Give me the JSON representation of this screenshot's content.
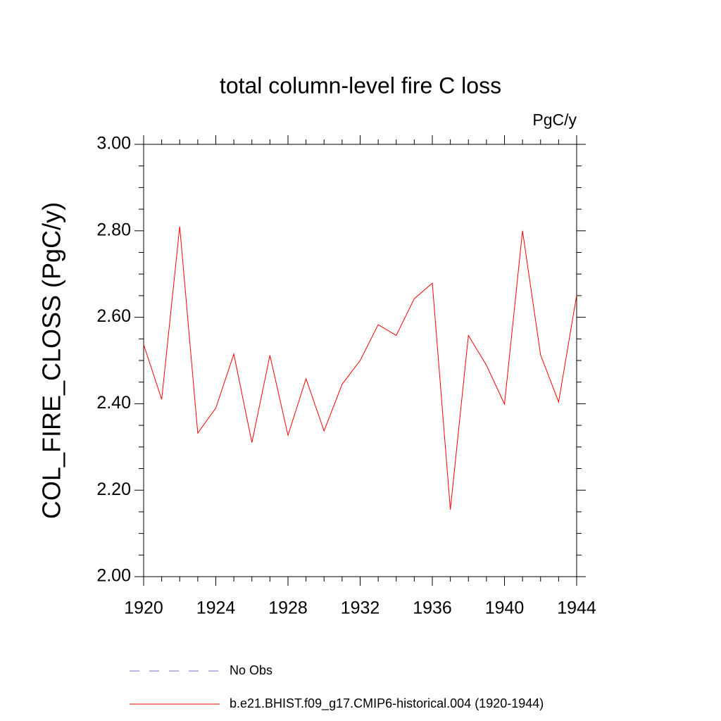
{
  "chart_data": {
    "type": "line",
    "title": "total column-level fire C loss",
    "subtitle": "PgC/y",
    "ylabel": "COL_FIRE_CLOSS  (PgC/y)",
    "x": [
      1920,
      1921,
      1922,
      1923,
      1924,
      1925,
      1926,
      1927,
      1928,
      1929,
      1930,
      1931,
      1932,
      1933,
      1934,
      1935,
      1936,
      1937,
      1938,
      1939,
      1940,
      1941,
      1942,
      1943,
      1944
    ],
    "series": [
      {
        "name": "No Obs",
        "color": "#7070c8",
        "dashed": true,
        "values": [
          null,
          null,
          null,
          null,
          null,
          null,
          null,
          null,
          null,
          null,
          null,
          null,
          null,
          null,
          null,
          null,
          null,
          null,
          null,
          null,
          null,
          null,
          null,
          null,
          null
        ]
      },
      {
        "name": "b.e21.BHIST.f09_g17.CMIP6-historical.004 (1920-1944)",
        "color": "#ff0000",
        "dashed": false,
        "values": [
          2.537,
          2.41,
          2.81,
          2.332,
          2.39,
          2.515,
          2.31,
          2.512,
          2.327,
          2.458,
          2.337,
          2.445,
          2.5,
          2.583,
          2.558,
          2.643,
          2.679,
          2.155,
          2.558,
          2.489,
          2.399,
          2.8,
          2.513,
          2.404,
          2.651
        ]
      }
    ],
    "xlim": [
      1920,
      1944
    ],
    "xticks": [
      1920,
      1924,
      1928,
      1932,
      1936,
      1940,
      1944
    ],
    "ylim": [
      2,
      3
    ],
    "yticks": [
      {
        "value": 2,
        "label": "2.00"
      },
      {
        "value": 2.2,
        "label": "2.20"
      },
      {
        "value": 2.4,
        "label": "2.40"
      },
      {
        "value": 2.6,
        "label": "2.60"
      },
      {
        "value": 2.8,
        "label": "2.80"
      },
      {
        "value": 3,
        "label": "3.00"
      }
    ],
    "grid": false
  }
}
